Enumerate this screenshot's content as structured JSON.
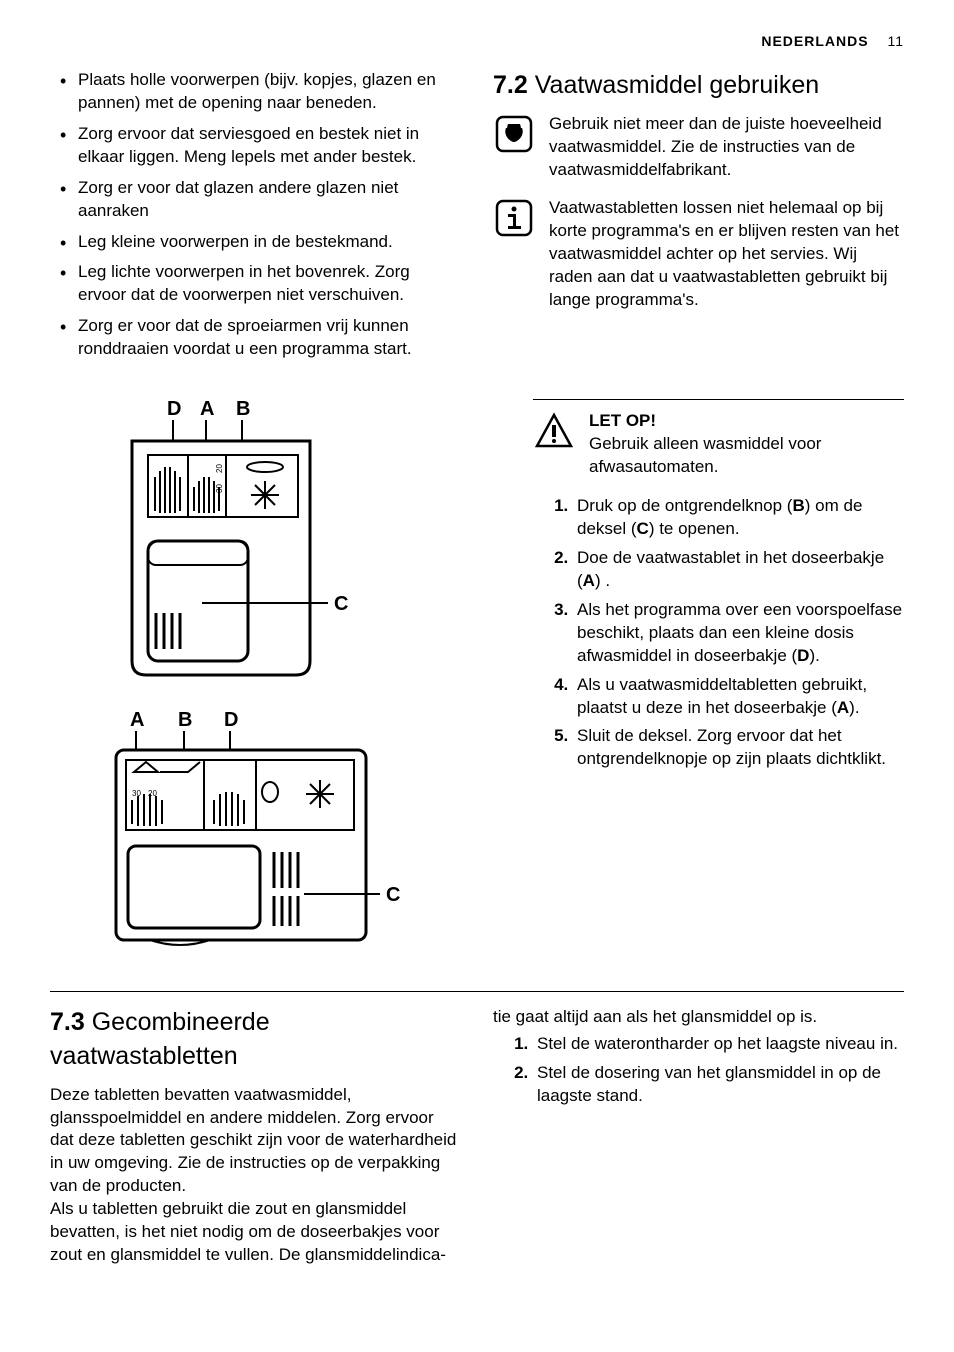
{
  "header": {
    "lang": "NEDERLANDS",
    "page": "11"
  },
  "leftTop": {
    "bullets": [
      "Plaats holle voorwerpen (bijv. kopjes, glazen en pannen) met de opening naar beneden.",
      "Zorg ervoor dat serviesgoed en bestek niet in elkaar liggen. Meng lepels met ander bestek.",
      "Zorg er voor dat glazen andere glazen niet aanraken",
      "Leg kleine voorwerpen in de bestekmand.",
      "Leg lichte voorwerpen in het bovenrek. Zorg ervoor dat de voorwerpen niet verschuiven.",
      "Zorg er voor dat de sproeiarmen vrij kunnen ronddraaien voordat u een programma start."
    ]
  },
  "section72": {
    "num": "7.2",
    "title": "Vaatwasmiddel gebruiken",
    "note1": "Gebruik niet meer dan de juiste hoeveelheid vaatwasmiddel. Zie de instructies van de vaatwasmiddelfabrikant.",
    "note2": "Vaatwastabletten lossen niet helemaal op bij korte programma's en er blijven resten van het vaatwasmiddel achter op het servies. Wij raden aan dat u vaatwastabletten gebruikt bij lange programma's."
  },
  "rightBlock": {
    "attention": "LET OP!",
    "attentionBody": "Gebruik alleen wasmiddel voor afwasautomaten.",
    "steps_html": [
      "Druk op de ontgrendelknop (<b>B</b>) om de deksel (<b>C</b>) te openen.",
      "Doe de vaatwastablet in het doseerbakje (<b>A</b>) .",
      "Als het programma over een voorspoelfase beschikt, plaats dan een kleine dosis afwasmiddel in doseerbakje (<b>D</b>).",
      "Als u vaatwasmiddeltabletten gebruikt, plaatst u deze in het doseerbakje (<b>A</b>).",
      "Sluit de deksel. Zorg ervoor dat het ontgrendelknopje op zijn plaats dichtklikt."
    ]
  },
  "diagrams": {
    "d1": {
      "labels": [
        "D",
        "A",
        "B",
        "C"
      ]
    },
    "d2": {
      "labels": [
        "A",
        "B",
        "D",
        "C"
      ]
    }
  },
  "section73": {
    "num": "7.3",
    "title": "Gecombineerde vaatwastabletten",
    "p1": "Deze tabletten bevatten vaatwasmiddel, glansspoelmiddel en andere middelen. Zorg ervoor dat deze tabletten geschikt zijn voor de waterhardheid in uw omgeving. Zie de instructies op de verpakking van de producten.",
    "p2a": "Als u tabletten gebruikt die zout en glansmiddel bevatten, is het niet nodig om de doseerbakjes voor zout en glansmiddel te vullen. De glansmiddelindica-",
    "p2b": "tie gaat altijd aan als het glansmiddel op is.",
    "steps": [
      "Stel de waterontharder op het laagste niveau in.",
      "Stel de dosering van het glansmiddel in op de laagste stand."
    ]
  },
  "colors": {
    "text": "#000000",
    "bg": "#ffffff"
  }
}
